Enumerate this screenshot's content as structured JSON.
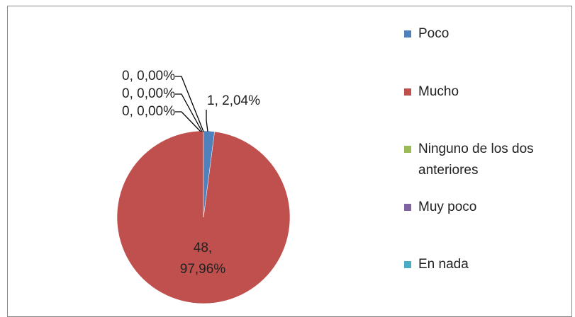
{
  "chart_data": {
    "type": "pie",
    "categories": [
      "Poco",
      "Mucho",
      "Ninguno de los dos anteriores",
      "Muy poco",
      "En nada"
    ],
    "values": [
      1,
      48,
      0,
      0,
      0
    ],
    "value_labels": [
      "1, 2,04%",
      "48, 97,96%",
      "0, 0,00%",
      "0, 0,00%",
      "0, 0,00%"
    ],
    "colors": [
      "#4f81bd",
      "#c0504d",
      "#9bbb59",
      "#8064a2",
      "#4bacc6"
    ],
    "legend": "right"
  }
}
